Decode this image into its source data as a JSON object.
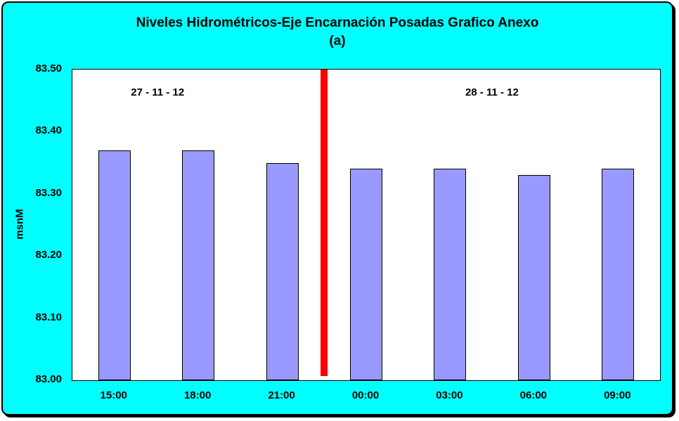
{
  "chart_data": {
    "type": "bar",
    "title": "Niveles Hidrométricos-Eje Encarnación Posadas Grafico Anexo",
    "subtitle": "(a)",
    "xlabel": "",
    "ylabel": "msnM",
    "categories": [
      "15:00",
      "18:00",
      "21:00",
      "00:00",
      "03:00",
      "06:00",
      "09:00"
    ],
    "values": [
      83.37,
      83.37,
      83.35,
      83.34,
      83.34,
      83.33,
      83.34
    ],
    "ylim": [
      83.0,
      83.5
    ],
    "ytick_step": 0.1,
    "yticks": [
      "83.50",
      "83.40",
      "83.30",
      "83.20",
      "83.10",
      "83.00"
    ],
    "annotations": [
      {
        "label": "27 - 11 - 12",
        "x_percent": 14.5
      },
      {
        "label": "28 - 11 - 12",
        "x_percent": 71.4
      }
    ],
    "divider": {
      "color": "#FF0000",
      "after_category_index": 2
    },
    "bar_color": "#9999FF",
    "bar_border_color": "#000000",
    "background": "#00FFFF",
    "plot_background": "#FFFFFF",
    "grid": false,
    "legend": false
  }
}
